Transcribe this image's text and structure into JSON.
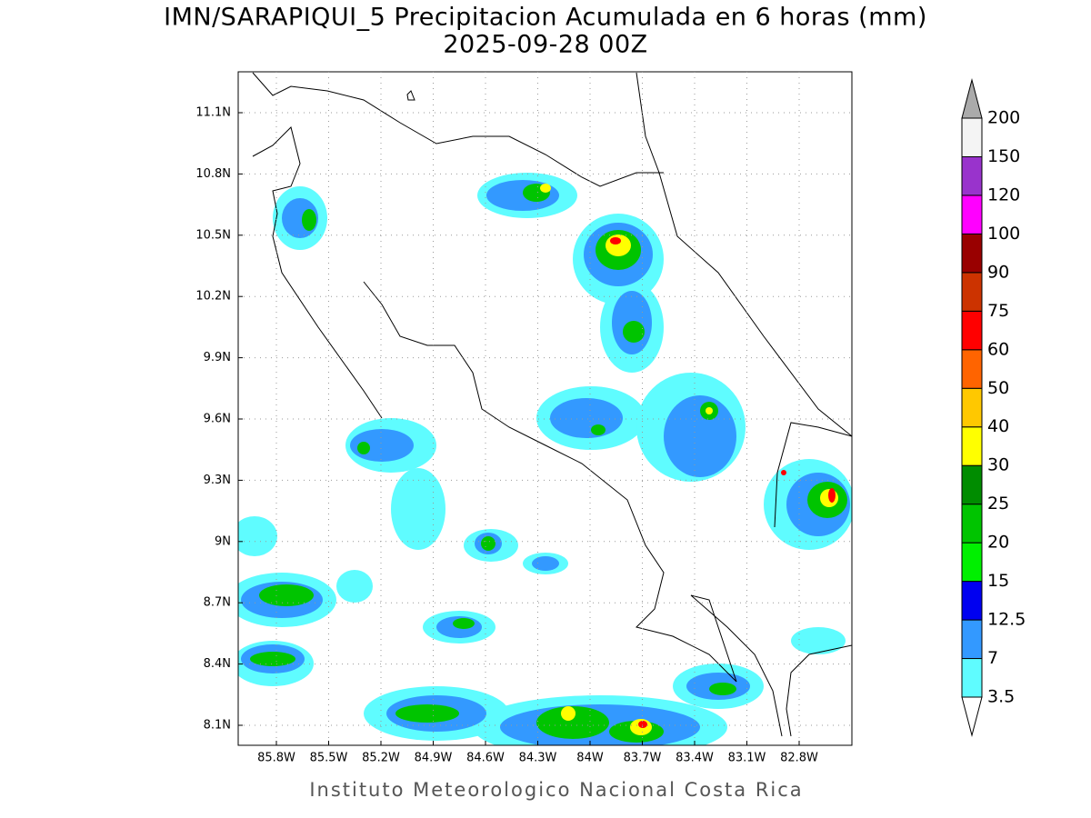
{
  "map": {
    "title": "IMN/SARAPIQUI_5 Precipitacion Acumulada en 6 horas (mm)",
    "subtitle": "2025-09-28 00Z",
    "lat_labels": [
      "11.1N",
      "10.8N",
      "10.5N",
      "10.2N",
      "9.9N",
      "9.6N",
      "9.3N",
      "9N",
      "8.7N",
      "8.4N",
      "8.1N"
    ],
    "lon_labels": [
      "85.8W",
      "85.5W",
      "85.2W",
      "84.9W",
      "84.6W",
      "84.3W",
      "84W",
      "83.7W",
      "83.4W",
      "83.1W",
      "82.8W"
    ],
    "credit": "Instituto Meteorologico Nacional Costa Rica",
    "colorbar": {
      "levels": [
        3.5,
        7,
        12.5,
        15,
        20,
        25,
        30,
        40,
        50,
        60,
        75,
        90,
        100,
        120,
        150,
        200
      ],
      "colors": [
        "#5ffcff",
        "#3399ff",
        "#0000f0",
        "#00f000",
        "#00c400",
        "#008c00",
        "#ffff00",
        "#ffc800",
        "#ff6400",
        "#ff0000",
        "#cc3300",
        "#990000",
        "#ff00ff",
        "#9933cc",
        "#f4f4f4"
      ],
      "under_color": "#ffffff",
      "over_color": "#aaaaaa"
    }
  }
}
